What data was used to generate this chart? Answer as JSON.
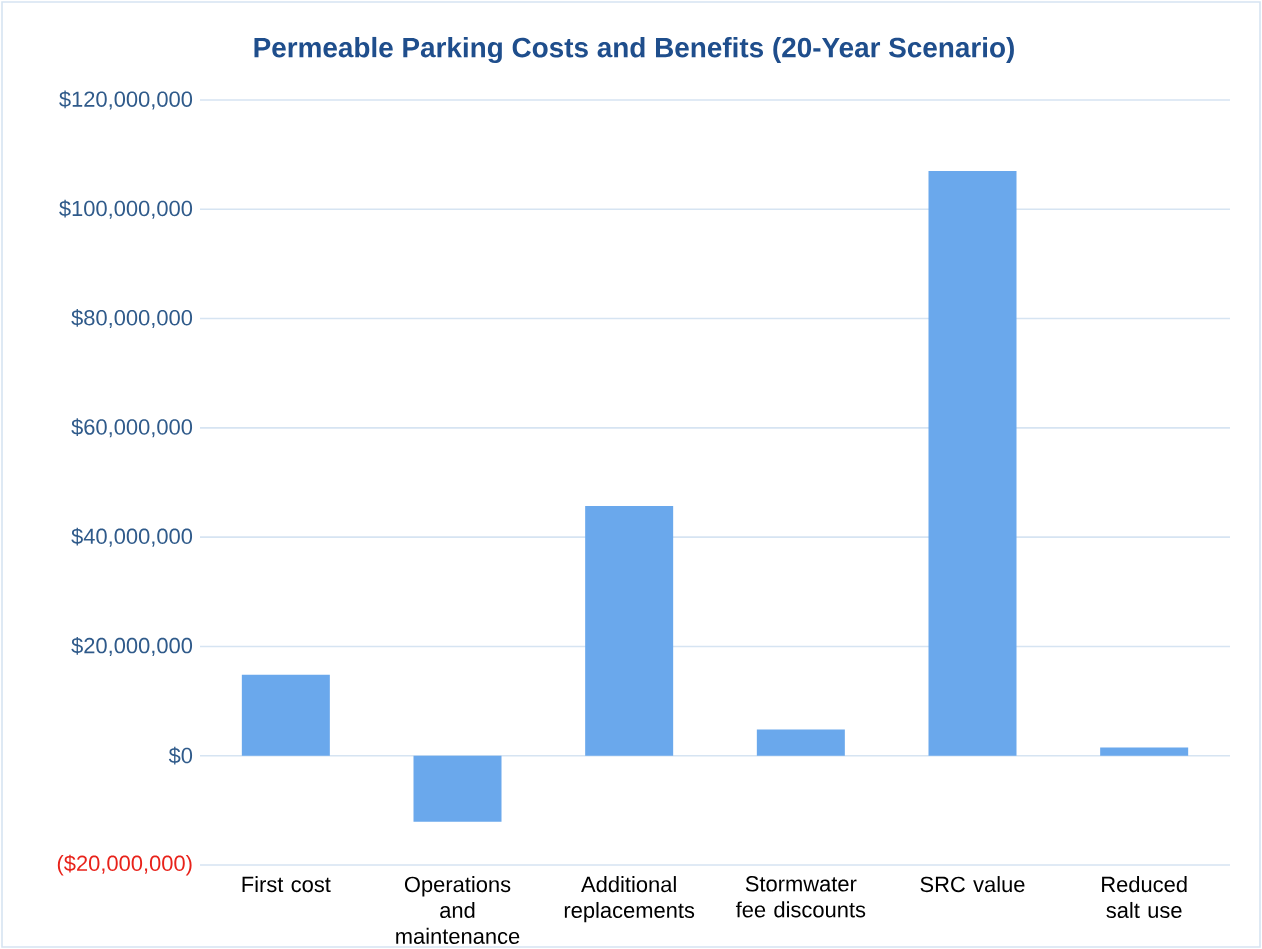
{
  "chart_data": {
    "type": "bar",
    "title": "Permeable Parking Costs and Benefits (20-Year Scenario)",
    "categories": [
      "First cost",
      "Operations and maintenance",
      "Additional replacements",
      "Stormwater fee discounts",
      "SRC value",
      "Reduced salt use"
    ],
    "values": [
      14800000,
      -12100000,
      45700000,
      4800000,
      107000000,
      1500000
    ],
    "color": "#6aa8ec",
    "ylim": [
      -20000000,
      120000000
    ],
    "yticks": [
      {
        "value": -20000000,
        "label": "($20,000,000)"
      },
      {
        "value": 0,
        "label": "$0"
      },
      {
        "value": 20000000,
        "label": "$20,000,000"
      },
      {
        "value": 40000000,
        "label": "$40,000,000"
      },
      {
        "value": 60000000,
        "label": "$60,000,000"
      },
      {
        "value": 80000000,
        "label": "$80,000,000"
      },
      {
        "value": 100000000,
        "label": "$100,000,000"
      },
      {
        "value": 120000000,
        "label": "$120,000,000"
      }
    ],
    "grid": "y"
  }
}
